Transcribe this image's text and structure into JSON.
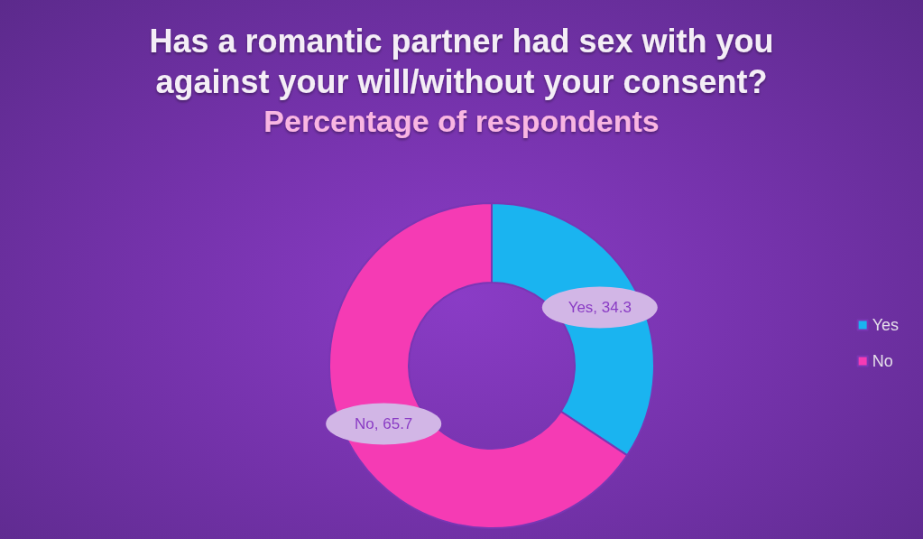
{
  "chart_data": {
    "type": "donut",
    "title": "Has a romantic partner had sex with you\nagainst your will/without your consent?",
    "subtitle": "Percentage of respondents",
    "categories": [
      "Yes",
      "No"
    ],
    "values": [
      34.3,
      65.7
    ],
    "colors": [
      "#1ab4f0",
      "#f53bb4"
    ],
    "value_labels": [
      "Yes, 34.3",
      "No, 65.7"
    ],
    "legend": "right"
  }
}
